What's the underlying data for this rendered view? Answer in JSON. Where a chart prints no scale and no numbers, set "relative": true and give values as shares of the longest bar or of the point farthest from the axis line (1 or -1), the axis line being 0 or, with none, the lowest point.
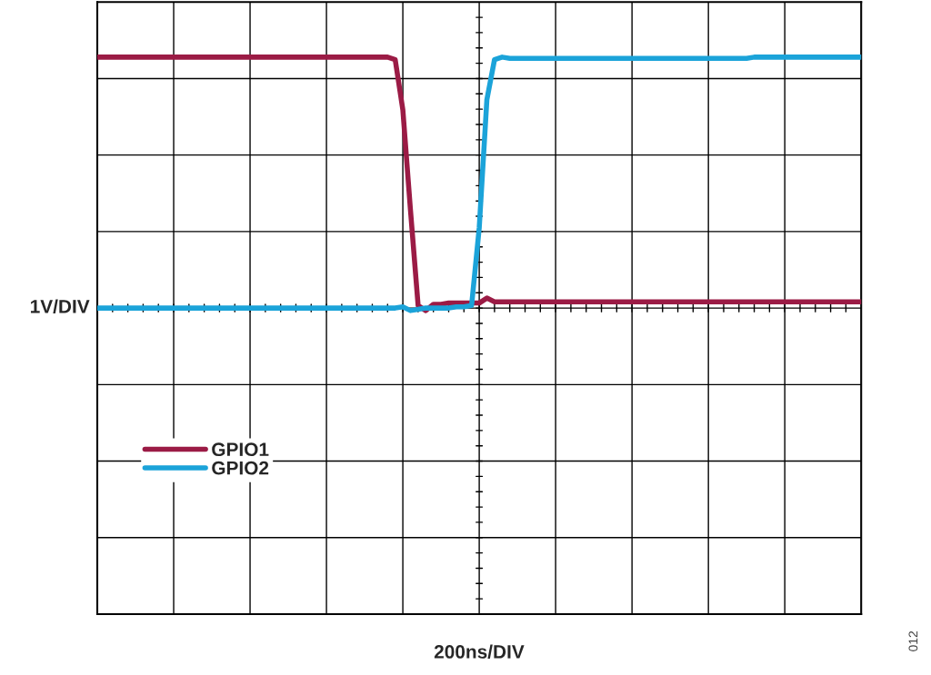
{
  "chart_data": {
    "type": "line",
    "relative": true,
    "ylabel": "1V/DIV",
    "categories": [
      null,
      null,
      null,
      null,
      null,
      null,
      null,
      null,
      null,
      null,
      null,
      null,
      null,
      null,
      null,
      null,
      null,
      null,
      null,
      null,
      null,
      null,
      null,
      null,
      null,
      null,
      null,
      null,
      null,
      null,
      null,
      null,
      null,
      null,
      null,
      null,
      null,
      null,
      null,
      null,
      null,
      null,
      null,
      null,
      null,
      null,
      null,
      null,
      null,
      null,
      null,
      null,
      null,
      null,
      null,
      null,
      null,
      null,
      null,
      null,
      null,
      null,
      null,
      null,
      null,
      null,
      null,
      null,
      null,
      null,
      null,
      null,
      null,
      null,
      null,
      null,
      null,
      null,
      null,
      null,
      null,
      null,
      null,
      null,
      null,
      null,
      null,
      null,
      null,
      null,
      null,
      null,
      null,
      null,
      null,
      null,
      null,
      null,
      null,
      null,
      null
    ],
    "series": [
      {
        "name": "GPIO1",
        "color": "#9b1b45",
        "values": [
          1,
          1,
          1,
          1,
          1,
          1,
          1,
          1,
          1,
          1,
          1,
          1,
          1,
          1,
          1,
          1,
          1,
          1,
          1,
          1,
          1,
          1,
          1,
          1,
          1,
          1,
          1,
          1,
          1,
          1,
          1,
          1,
          1,
          1,
          1,
          1,
          1,
          1,
          1,
          0.99,
          0.79,
          0.39,
          0.01,
          -0.01,
          0.015,
          0.015,
          0.02,
          0.02,
          0.02,
          0.02,
          0.02,
          0.04,
          0.025,
          0.025,
          0.025,
          0.025,
          0.025,
          0.025,
          0.025,
          0.025,
          0.025,
          0.025,
          0.025,
          0.025,
          0.025,
          0.025,
          0.025,
          0.025,
          0.025,
          0.025,
          0.025,
          0.025,
          0.025,
          0.025,
          0.025,
          0.025,
          0.025,
          0.025,
          0.025,
          0.025,
          0.025,
          0.025,
          0.025,
          0.025,
          0.025,
          0.025,
          0.025,
          0.025,
          0.025,
          0.025,
          0.025,
          0.025,
          0.025,
          0.025,
          0.025,
          0.025,
          0.025,
          0.025,
          0.025,
          0.025,
          0.025
        ]
      },
      {
        "name": "GPIO2",
        "color": "#1ba3d9",
        "values": [
          0,
          0,
          0,
          0,
          0,
          0,
          0,
          0,
          0,
          0,
          0,
          0,
          0,
          0,
          0,
          0,
          0,
          0,
          0,
          0,
          0,
          0,
          0,
          0,
          0,
          0,
          0,
          0,
          0,
          0,
          0,
          0,
          0,
          0,
          0,
          0,
          0,
          0,
          0,
          0,
          0.005,
          -0.01,
          -0.005,
          0,
          0,
          0,
          0,
          0.005,
          0.005,
          0.01,
          0.32,
          0.83,
          0.99,
          1,
          0.995,
          0.995,
          0.995,
          0.995,
          0.995,
          0.995,
          0.995,
          0.995,
          0.995,
          0.995,
          0.995,
          0.995,
          0.995,
          0.995,
          0.995,
          0.995,
          0.995,
          0.995,
          0.995,
          0.995,
          0.995,
          0.995,
          0.995,
          0.995,
          0.995,
          0.995,
          0.995,
          0.995,
          0.995,
          0.995,
          0.995,
          0.995,
          1,
          1,
          1,
          1,
          1,
          1,
          1,
          1,
          1,
          1,
          1,
          1,
          1,
          1,
          1
        ]
      }
    ],
    "legend": "bottom left",
    "grid": true,
    "line_style": "solid",
    "marker": "none",
    "annotations": [
      "200ns/DIV",
      "012"
    ]
  }
}
